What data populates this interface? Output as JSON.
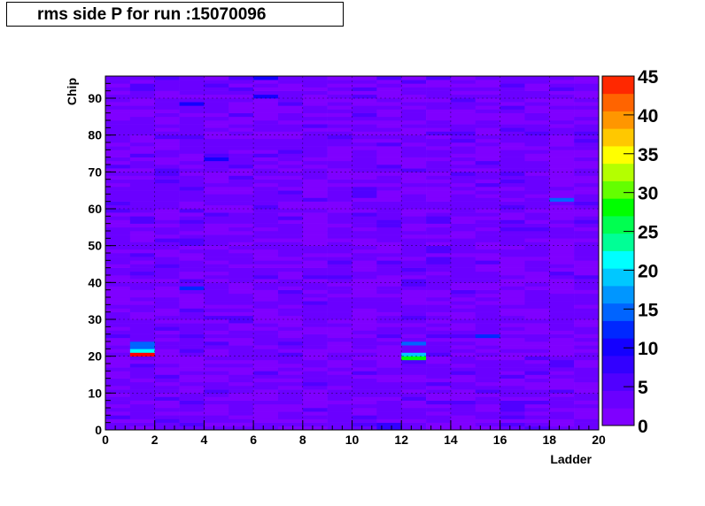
{
  "title": "rms side P for run :15070096",
  "chart_data": {
    "type": "heatmap",
    "title": "rms side P for run :15070096",
    "xlabel": "Ladder",
    "ylabel": "Chip",
    "xlim": [
      0,
      20
    ],
    "ylim": [
      0,
      96
    ],
    "zlim": [
      0,
      45
    ],
    "x_ticks": [
      "0",
      "2",
      "4",
      "6",
      "8",
      "10",
      "12",
      "14",
      "16",
      "18",
      "20"
    ],
    "y_ticks": [
      "0",
      "10",
      "20",
      "30",
      "40",
      "50",
      "60",
      "70",
      "80",
      "90"
    ],
    "z_ticks": [
      "0",
      "5",
      "10",
      "15",
      "20",
      "25",
      "30",
      "35",
      "40",
      "45"
    ],
    "grid": true,
    "n_ladders": 20,
    "n_chips": 96,
    "palette": [
      "#7f00ff",
      "#6a00ff",
      "#5000ff",
      "#3200ff",
      "#1400ff",
      "#0028ff",
      "#0064ff",
      "#0096ff",
      "#00c8ff",
      "#00ffff",
      "#00ff96",
      "#00ff50",
      "#00ff00",
      "#64ff00",
      "#b4ff00",
      "#ffff00",
      "#ffc800",
      "#ff9600",
      "#ff6400",
      "#ff2800",
      "#ff0000"
    ],
    "background_level": 3,
    "hot_cells": [
      {
        "ladder": 1,
        "chip": 20,
        "value": 45
      },
      {
        "ladder": 1,
        "chip": 21,
        "value": 22
      },
      {
        "ladder": 1,
        "chip": 22,
        "value": 15
      },
      {
        "ladder": 1,
        "chip": 23,
        "value": 14
      },
      {
        "ladder": 12,
        "chip": 19,
        "value": 27
      },
      {
        "ladder": 12,
        "chip": 20,
        "value": 20
      },
      {
        "ladder": 12,
        "chip": 23,
        "value": 14
      },
      {
        "ladder": 18,
        "chip": 62,
        "value": 14
      },
      {
        "ladder": 3,
        "chip": 38,
        "value": 12
      },
      {
        "ladder": 15,
        "chip": 25,
        "value": 12
      },
      {
        "ladder": 11,
        "chip": 0,
        "value": 8
      },
      {
        "ladder": 11,
        "chip": 1,
        "value": 8
      },
      {
        "ladder": 6,
        "chip": 90,
        "value": 10
      },
      {
        "ladder": 6,
        "chip": 95,
        "value": 9
      },
      {
        "ladder": 3,
        "chip": 88,
        "value": 9
      },
      {
        "ladder": 4,
        "chip": 73,
        "value": 9
      }
    ]
  }
}
